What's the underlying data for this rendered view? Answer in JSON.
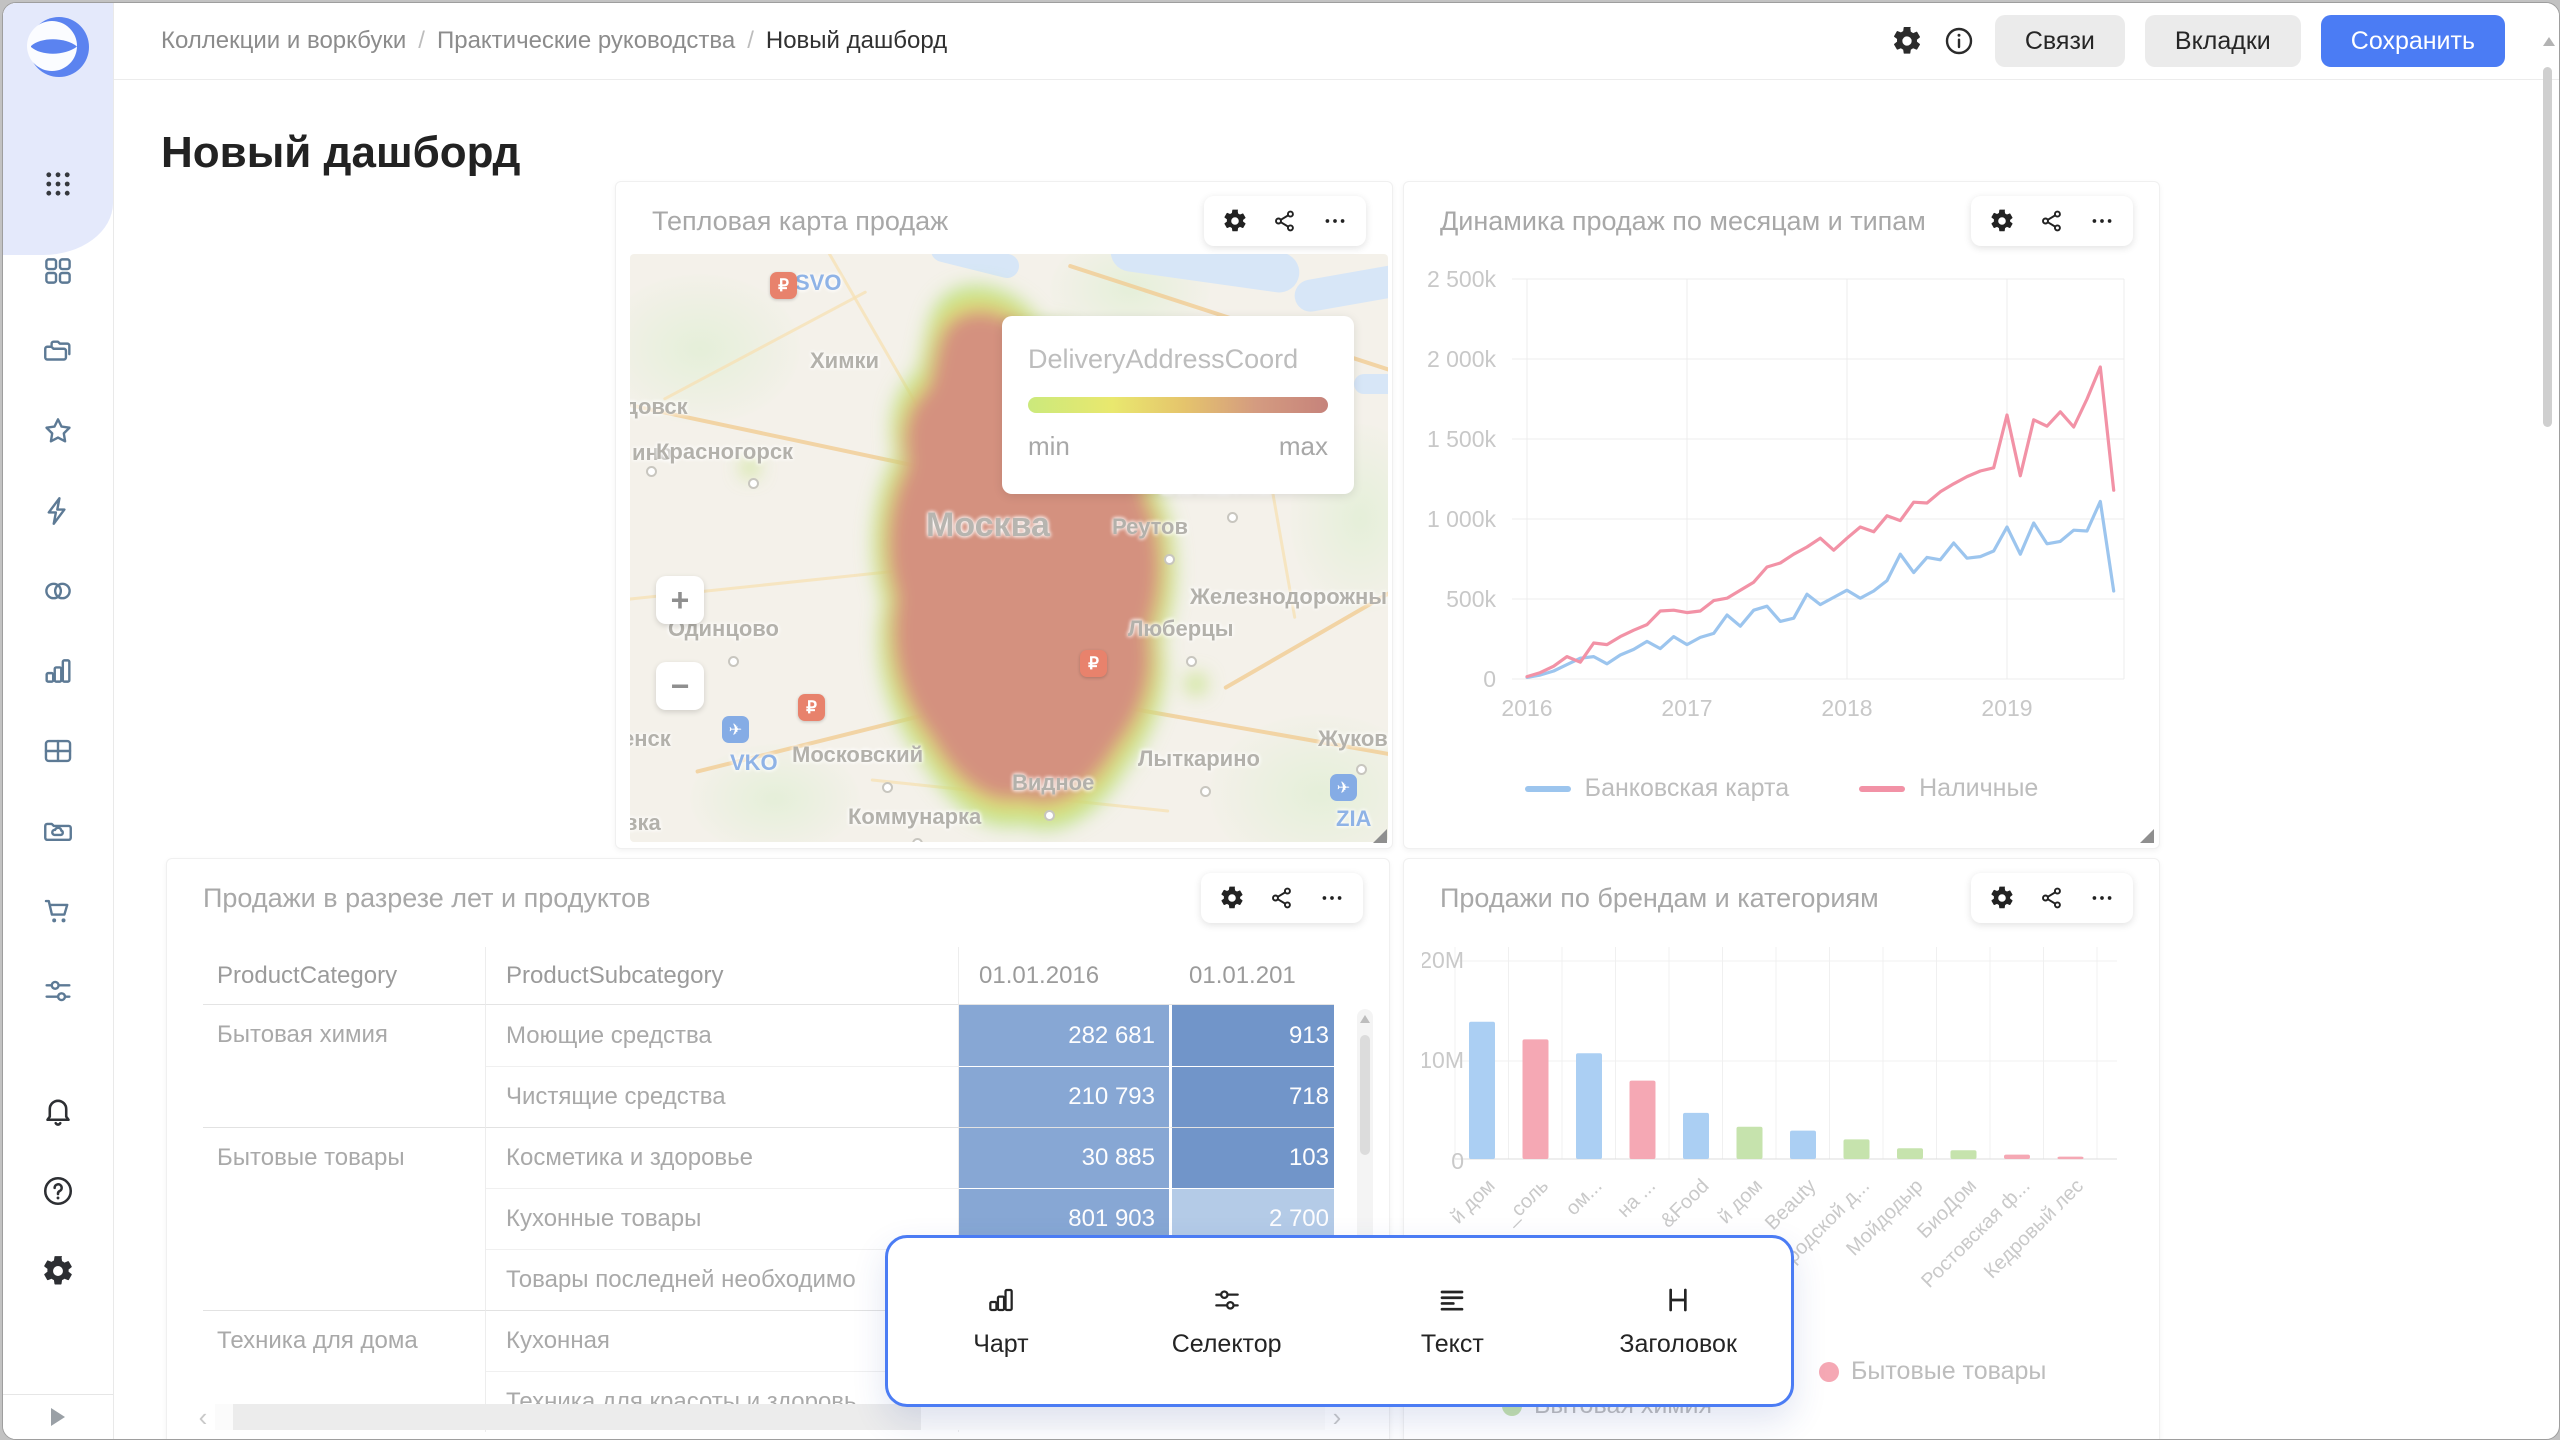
{
  "breadcrumb": {
    "items": [
      "Коллекции и воркбуки",
      "Практические руководства",
      "Новый дашборд"
    ]
  },
  "topbar": {
    "links_label": "Связи",
    "tabs_label": "Вкладки",
    "save_label": "Сохранить"
  },
  "page": {
    "title": "Новый дашборд"
  },
  "sidebar": {
    "nav_icons": [
      "grid",
      "folders",
      "star",
      "bolt",
      "circles",
      "chart",
      "tablegrid",
      "foldercloud",
      "cart",
      "sliders"
    ],
    "footer_icons": [
      "bell",
      "help",
      "gear"
    ]
  },
  "popup": {
    "items": [
      {
        "icon": "chart",
        "label": "Чарт"
      },
      {
        "icon": "sliders",
        "label": "Селектор"
      },
      {
        "icon": "textlines",
        "label": "Текст"
      },
      {
        "icon": "heading",
        "label": "Заголовок"
      }
    ]
  },
  "chart_data": [
    {
      "type": "heatmap",
      "title": "Тепловая карта продаж",
      "legend": {
        "field": "DeliveryAddressCoord",
        "min": "min",
        "max": "max"
      },
      "zoom_in": "+",
      "zoom_out": "−",
      "map_labels": [
        {
          "text": "SVO",
          "x": 165,
          "y": 16,
          "cls": "airport"
        },
        {
          "text": "Химки",
          "x": 180,
          "y": 94,
          "cls": "town"
        },
        {
          "text": "довск",
          "x": -6,
          "y": 140,
          "cls": "town"
        },
        {
          "text": "ино",
          "x": 2,
          "y": 186,
          "cls": "town"
        },
        {
          "text": "Красногорск",
          "x": 26,
          "y": 185,
          "cls": "town"
        },
        {
          "text": "Балашиха",
          "x": 530,
          "y": 220,
          "cls": "town"
        },
        {
          "text": "Москва",
          "x": 296,
          "y": 252,
          "cls": "city-big"
        },
        {
          "text": "Реутов",
          "x": 482,
          "y": 260,
          "cls": "town"
        },
        {
          "text": "Железнодорожны",
          "x": 560,
          "y": 330,
          "cls": "town"
        },
        {
          "text": "Одинцово",
          "x": 38,
          "y": 362,
          "cls": "town"
        },
        {
          "text": "Люберцы",
          "x": 498,
          "y": 362,
          "cls": "town"
        },
        {
          "text": "енск",
          "x": -8,
          "y": 472,
          "cls": "town"
        },
        {
          "text": "VKO",
          "x": 100,
          "y": 496,
          "cls": "airport"
        },
        {
          "text": "Московский",
          "x": 162,
          "y": 488,
          "cls": "town"
        },
        {
          "text": "Лыткарино",
          "x": 508,
          "y": 492,
          "cls": "town"
        },
        {
          "text": "Жуковс",
          "x": 688,
          "y": 472,
          "cls": "town"
        },
        {
          "text": "Видное",
          "x": 382,
          "y": 516,
          "cls": "town"
        },
        {
          "text": "Коммунарка",
          "x": 218,
          "y": 550,
          "cls": "town"
        },
        {
          "text": "вка",
          "x": -6,
          "y": 556,
          "cls": "town"
        }
      ],
      "airport_bottom_label": "ZIA",
      "currency_markers": [
        {
          "x": 140,
          "y": 18
        },
        {
          "x": 450,
          "y": 396
        },
        {
          "x": 168,
          "y": 440
        }
      ],
      "plane_markers": [
        {
          "x": 92,
          "y": 462
        },
        {
          "x": 700,
          "y": 520
        }
      ],
      "town_dots": [
        {
          "x": 118,
          "y": 224
        },
        {
          "x": 597,
          "y": 258
        },
        {
          "x": 534,
          "y": 300
        },
        {
          "x": 98,
          "y": 402
        },
        {
          "x": 556,
          "y": 402
        },
        {
          "x": 252,
          "y": 528
        },
        {
          "x": 570,
          "y": 532
        },
        {
          "x": 414,
          "y": 556
        },
        {
          "x": 282,
          "y": 584
        },
        {
          "x": 726,
          "y": 510
        },
        {
          "x": 16,
          "y": 212
        }
      ]
    },
    {
      "type": "line",
      "title": "Динамика продаж по месяцам и типам",
      "y_ticks": [
        "0",
        "500k",
        "1 000k",
        "1 500k",
        "2 000k",
        "2 500k"
      ],
      "x_ticks": [
        "2016",
        "2017",
        "2018",
        "2019"
      ],
      "ylim": [
        0,
        2500
      ],
      "unit": "k",
      "grid": true,
      "legend_position": "bottom",
      "series": [
        {
          "name": "Банковская карта",
          "color": "#9cc5ee",
          "values": [
            10,
            25,
            50,
            90,
            130,
            140,
            95,
            150,
            185,
            235,
            190,
            265,
            215,
            260,
            285,
            400,
            330,
            430,
            455,
            360,
            380,
            530,
            465,
            510,
            555,
            505,
            550,
            615,
            780,
            665,
            760,
            745,
            850,
            755,
            765,
            800,
            950,
            780,
            975,
            845,
            860,
            930,
            925,
            1110,
            550
          ]
        },
        {
          "name": "Наличные",
          "color": "#f292a6",
          "values": [
            15,
            40,
            80,
            140,
            105,
            225,
            215,
            265,
            305,
            340,
            425,
            430,
            415,
            425,
            490,
            505,
            555,
            605,
            700,
            725,
            780,
            825,
            880,
            805,
            880,
            950,
            920,
            1020,
            990,
            1105,
            1100,
            1170,
            1220,
            1265,
            1300,
            1320,
            1650,
            1270,
            1620,
            1580,
            1670,
            1575,
            1750,
            1950,
            1180
          ]
        }
      ]
    },
    {
      "type": "table",
      "title": "Продажи в разрезе лет и продуктов",
      "columns": [
        "ProductCategory",
        "ProductSubcategory",
        "01.01.2016",
        "01.01.201"
      ],
      "rows": [
        {
          "category": "Бытовая химия",
          "subcategory": "Моющие средства",
          "v2016": "282 681",
          "v2017": "913",
          "shade2016": "mid",
          "shade2017": "dark",
          "group_start": true
        },
        {
          "category": "",
          "subcategory": "Чистящие средства",
          "v2016": "210 793",
          "v2017": "718",
          "shade2016": "mid",
          "shade2017": "dark",
          "group_start": false
        },
        {
          "category": "Бытовые товары",
          "subcategory": "Косметика и здоровье",
          "v2016": "30 885",
          "v2017": "103",
          "shade2016": "mid",
          "shade2017": "dark",
          "group_start": true
        },
        {
          "category": "",
          "subcategory": "Кухонные товары",
          "v2016": "801 903",
          "v2017": "2 700",
          "shade2016": "mid",
          "shade2017": "light",
          "group_start": false
        },
        {
          "category": "",
          "subcategory": "Товары последней необходимо",
          "v2016": "",
          "v2017": "",
          "shade2016": "none",
          "shade2017": "none",
          "group_start": false
        },
        {
          "category": "Техника для дома",
          "subcategory": "Кухонная",
          "v2016": "",
          "v2017": "",
          "shade2016": "none",
          "shade2017": "none",
          "group_start": true
        },
        {
          "category": "",
          "subcategory": "Техника для красоты и здоровь",
          "v2016": "",
          "v2017": "",
          "shade2016": "none",
          "shade2017": "none",
          "group_start": false
        }
      ]
    },
    {
      "type": "bar",
      "title": "Продажи по брендам и категориям",
      "y_ticks": [
        "0",
        "10M",
        "20M"
      ],
      "ylim": [
        0,
        20
      ],
      "unit": "M",
      "categories": [
        "й дом",
        "_соль",
        "ом...",
        "на ...",
        "&Food",
        "й дом",
        "Beauty",
        "городской д...",
        "Мойдодыр",
        "БиоДом",
        "Ростовская ф...",
        "Кедровый лес"
      ],
      "values": [
        14,
        12.2,
        10.8,
        8,
        4.7,
        3.3,
        2.9,
        2,
        1.1,
        0.9,
        0.45,
        0.25
      ],
      "bar_colors": [
        "blue",
        "pink",
        "blue",
        "pink",
        "blue",
        "green",
        "blue",
        "green",
        "green",
        "green",
        "pink",
        "pink"
      ],
      "palette": {
        "blue": "#abcff3",
        "pink": "#f5a8b4",
        "green": "#c6e3ad"
      },
      "legend": [
        {
          "label": "Бытовые товары",
          "color": "#f5a8b4"
        },
        {
          "label": "Бытовая химия",
          "color": "#c6e3ad"
        }
      ]
    }
  ]
}
